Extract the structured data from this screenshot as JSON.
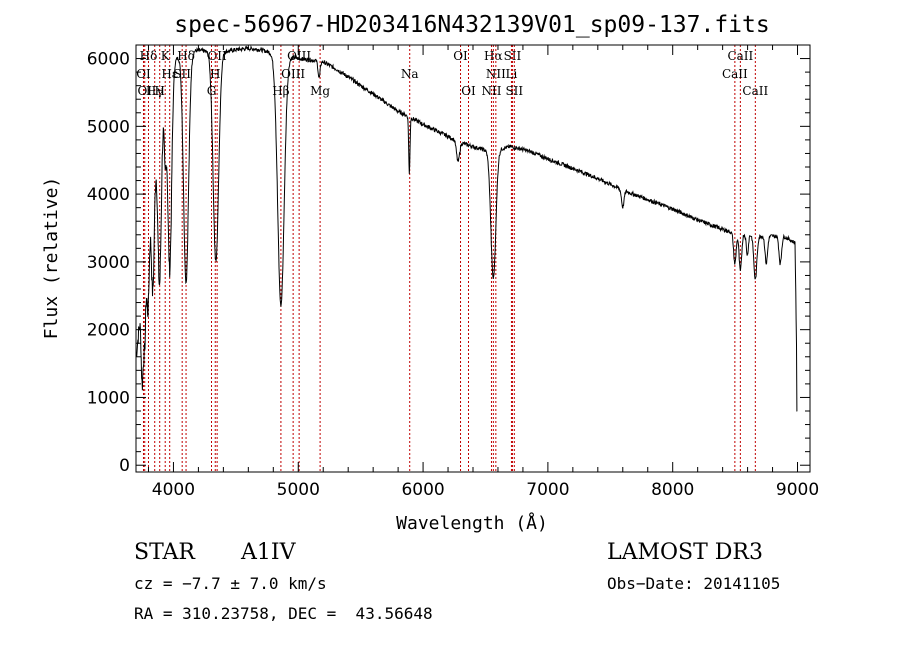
{
  "chart_data": {
    "type": "line",
    "title": "spec-56967-HD203416N432139V01_sp09-137.fits",
    "xlabel": "Wavelength (Å)",
    "ylabel": "Flux (relative)",
    "xlim": [
      3700,
      9100
    ],
    "ylim": [
      -100,
      6200
    ],
    "xticks": [
      4000,
      5000,
      6000,
      7000,
      8000,
      9000
    ],
    "yticks": [
      0,
      1000,
      2000,
      3000,
      4000,
      5000,
      6000
    ],
    "continuum": [
      [
        3700,
        1600
      ],
      [
        3760,
        2600
      ],
      [
        3800,
        3800
      ],
      [
        3850,
        4600
      ],
      [
        3900,
        5200
      ],
      [
        3950,
        5700
      ],
      [
        4000,
        5950
      ],
      [
        4050,
        6050
      ],
      [
        4100,
        6100
      ],
      [
        4200,
        6120
      ],
      [
        4300,
        6100
      ],
      [
        4400,
        6100
      ],
      [
        4500,
        6130
      ],
      [
        4600,
        6150
      ],
      [
        4700,
        6130
      ],
      [
        4800,
        6080
      ],
      [
        4900,
        6040
      ],
      [
        5000,
        6000
      ],
      [
        5100,
        5980
      ],
      [
        5200,
        5950
      ],
      [
        5300,
        5850
      ],
      [
        5400,
        5730
      ],
      [
        5500,
        5600
      ],
      [
        5600,
        5480
      ],
      [
        5700,
        5350
      ],
      [
        5800,
        5220
      ],
      [
        5900,
        5130
      ],
      [
        6000,
        5030
      ],
      [
        6100,
        4940
      ],
      [
        6200,
        4850
      ],
      [
        6300,
        4760
      ],
      [
        6400,
        4700
      ],
      [
        6500,
        4650
      ],
      [
        6600,
        4660
      ],
      [
        6700,
        4700
      ],
      [
        6800,
        4660
      ],
      [
        6900,
        4600
      ],
      [
        7000,
        4520
      ],
      [
        7200,
        4380
      ],
      [
        7400,
        4230
      ],
      [
        7600,
        4060
      ],
      [
        7800,
        3920
      ],
      [
        8000,
        3780
      ],
      [
        8200,
        3620
      ],
      [
        8400,
        3480
      ],
      [
        8500,
        3420
      ],
      [
        8600,
        3400
      ],
      [
        8700,
        3380
      ],
      [
        8800,
        3380
      ],
      [
        8900,
        3370
      ],
      [
        8980,
        3280
      ],
      [
        9000,
        800
      ]
    ],
    "absorption": [
      {
        "center": 3750,
        "depth": 1200,
        "width": 8
      },
      {
        "center": 3770,
        "depth": 1100,
        "width": 8
      },
      {
        "center": 3797,
        "depth": 1400,
        "width": 10
      },
      {
        "center": 3835,
        "depth": 1800,
        "width": 12
      },
      {
        "center": 3889,
        "depth": 2400,
        "width": 14
      },
      {
        "center": 3933,
        "depth": 1000,
        "width": 8
      },
      {
        "center": 3970,
        "depth": 2900,
        "width": 16
      },
      {
        "center": 4101,
        "depth": 3400,
        "width": 20
      },
      {
        "center": 4340,
        "depth": 3100,
        "width": 22
      },
      {
        "center": 4861,
        "depth": 3700,
        "width": 26
      },
      {
        "center": 5167,
        "depth": 250,
        "width": 8
      },
      {
        "center": 5890,
        "depth": 850,
        "width": 5
      },
      {
        "center": 6280,
        "depth": 300,
        "width": 12
      },
      {
        "center": 6563,
        "depth": 1900,
        "width": 20
      },
      {
        "center": 7600,
        "depth": 250,
        "width": 10
      },
      {
        "center": 8498,
        "depth": 450,
        "width": 10
      },
      {
        "center": 8542,
        "depth": 550,
        "width": 10
      },
      {
        "center": 8598,
        "depth": 300,
        "width": 8
      },
      {
        "center": 8662,
        "depth": 650,
        "width": 12
      },
      {
        "center": 8750,
        "depth": 400,
        "width": 10
      },
      {
        "center": 8862,
        "depth": 400,
        "width": 10
      }
    ],
    "lines": [
      {
        "label": "Hδ",
        "x": 4101,
        "row": 0
      },
      {
        "label": "K",
        "x": 3934,
        "row": 0
      },
      {
        "label": "Hδ",
        "x": 3800,
        "row": 0
      },
      {
        "label": "Hε",
        "x": 3970,
        "row": 1
      },
      {
        "label": "OI",
        "x": 3760,
        "row": 1
      },
      {
        "label": "SII",
        "x": 4070,
        "row": 1
      },
      {
        "label": "OII",
        "x": 4350,
        "row": 0
      },
      {
        "label": "H",
        "x": 4335,
        "row": 1
      },
      {
        "label": "G",
        "x": 4305,
        "row": 2
      },
      {
        "label": "OI",
        "x": 3770,
        "row": 2
      },
      {
        "label": "Hγ",
        "x": 3850,
        "row": 2
      },
      {
        "label": "H",
        "x": 3890,
        "row": 2
      },
      {
        "label": "OIII",
        "x": 5007,
        "row": 0
      },
      {
        "label": "OIII",
        "x": 4959,
        "row": 1
      },
      {
        "label": "Hβ",
        "x": 4861,
        "row": 2
      },
      {
        "label": "Mg",
        "x": 5175,
        "row": 2
      },
      {
        "label": "Na",
        "x": 5893,
        "row": 1
      },
      {
        "label": "OI",
        "x": 6300,
        "row": 0
      },
      {
        "label": "OI",
        "x": 6364,
        "row": 2
      },
      {
        "label": "Hα",
        "x": 6563,
        "row": 0
      },
      {
        "label": "SII",
        "x": 6716,
        "row": 0
      },
      {
        "label": "NII",
        "x": 6583,
        "row": 1
      },
      {
        "label": "Li",
        "x": 6708,
        "row": 1
      },
      {
        "label": "NII",
        "x": 6548,
        "row": 2
      },
      {
        "label": "SII",
        "x": 6731,
        "row": 2
      },
      {
        "label": "CaII",
        "x": 8542,
        "row": 0
      },
      {
        "label": "CaII",
        "x": 8498,
        "row": 1
      },
      {
        "label": "CaII",
        "x": 8662,
        "row": 2
      }
    ]
  },
  "info": {
    "type_label": "STAR",
    "subclass": "A1IV",
    "survey": "LAMOST DR3",
    "cz": "cz = −7.7 ± 7.0 km/s",
    "obs_date": "Obs−Date: 20141105",
    "coords": "RA = 310.23758, DEC =  43.56648"
  }
}
